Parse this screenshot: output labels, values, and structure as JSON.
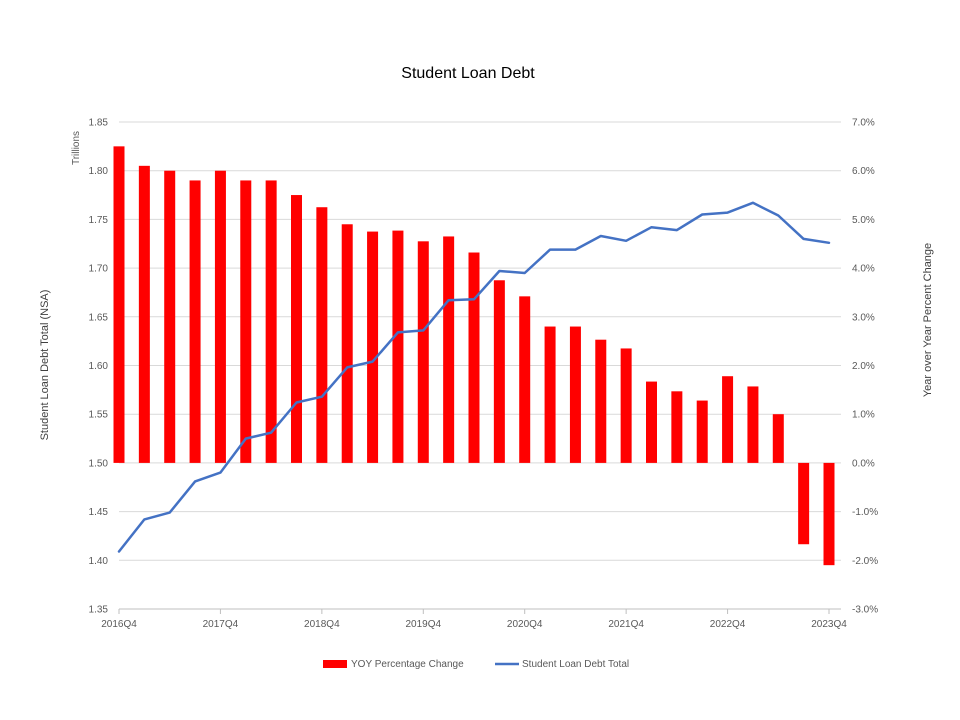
{
  "chart_data": {
    "type": "bar+line",
    "title": "Student Loan Debt",
    "y_left_label": "Student Loan Debt Total (NSA)",
    "y_left_unit": "Trillions",
    "y_right_label": "Year over Year Percent Change",
    "y_left_lim": [
      1.35,
      1.85
    ],
    "y_left_ticks": [
      "1.35",
      "1.40",
      "1.45",
      "1.50",
      "1.55",
      "1.60",
      "1.65",
      "1.70",
      "1.75",
      "1.80",
      "1.85"
    ],
    "y_right_lim": [
      -3.0,
      7.0
    ],
    "y_right_ticks": [
      "-3.0%",
      "-2.0%",
      "-1.0%",
      "0.0%",
      "1.0%",
      "2.0%",
      "3.0%",
      "4.0%",
      "5.0%",
      "6.0%",
      "7.0%"
    ],
    "x_ticks": [
      "2016Q4",
      "2017Q4",
      "2018Q4",
      "2019Q4",
      "2020Q4",
      "2021Q4",
      "2022Q4",
      "2023Q4"
    ],
    "grid": true,
    "legend_position": "bottom",
    "categories": [
      "2016Q4",
      "2017Q1",
      "2017Q2",
      "2017Q3",
      "2017Q4",
      "2018Q1",
      "2018Q2",
      "2018Q3",
      "2018Q4",
      "2019Q1",
      "2019Q2",
      "2019Q3",
      "2019Q4",
      "2020Q1",
      "2020Q2",
      "2020Q3",
      "2020Q4",
      "2021Q1",
      "2021Q2",
      "2021Q3",
      "2021Q4",
      "2022Q1",
      "2022Q2",
      "2022Q3",
      "2022Q4",
      "2023Q1",
      "2023Q2",
      "2023Q3",
      "2023Q4"
    ],
    "series": [
      {
        "name": "YOY Percentage Change",
        "type": "bar",
        "axis": "right",
        "color": "#ff0000",
        "values": [
          6.5,
          6.1,
          6.0,
          5.8,
          6.0,
          5.8,
          5.8,
          5.5,
          5.25,
          4.9,
          4.75,
          4.77,
          4.55,
          4.65,
          4.32,
          3.75,
          3.42,
          2.8,
          2.8,
          2.53,
          2.35,
          1.67,
          1.47,
          1.28,
          1.78,
          1.57,
          1.0,
          -1.67,
          -2.1
        ]
      },
      {
        "name": "Student Loan Debt Total",
        "type": "line",
        "axis": "left",
        "color": "#4472c4",
        "values": [
          1.409,
          1.442,
          1.449,
          1.481,
          1.49,
          1.525,
          1.531,
          1.562,
          1.568,
          1.598,
          1.604,
          1.634,
          1.636,
          1.667,
          1.668,
          1.697,
          1.695,
          1.719,
          1.719,
          1.733,
          1.728,
          1.742,
          1.739,
          1.755,
          1.757,
          1.767,
          1.754,
          1.73,
          1.726
        ]
      }
    ]
  }
}
